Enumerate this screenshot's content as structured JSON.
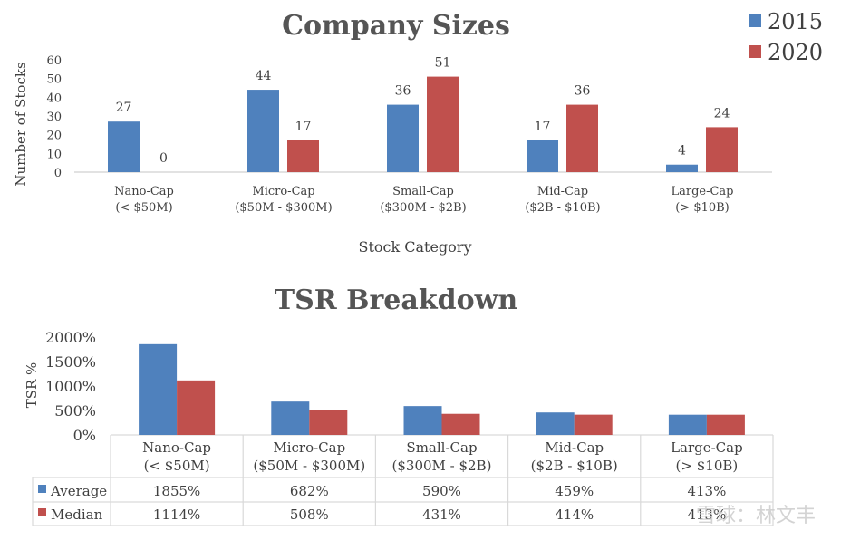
{
  "colors": {
    "series_2015": "#4f81bd",
    "series_2020": "#c0504d",
    "average": "#4f81bd",
    "median": "#c0504d",
    "axis": "#d9d9d9",
    "text": "#404040",
    "title": "#555555"
  },
  "watermark": "雪球：林文丰",
  "chart_data": [
    {
      "type": "bar",
      "title": "Company Sizes",
      "xlabel": "Stock Category",
      "ylabel": "Number of Stocks",
      "ylim": [
        0,
        60
      ],
      "yticks": [
        0,
        10,
        20,
        30,
        40,
        50,
        60
      ],
      "legend_position": "top-right",
      "categories": [
        [
          "Nano-Cap",
          "(< $50M)"
        ],
        [
          "Micro-Cap",
          "($50M - $300M)"
        ],
        [
          "Small-Cap",
          "($300M - $2B)"
        ],
        [
          "Mid-Cap",
          "($2B - $10B)"
        ],
        [
          "Large-Cap",
          "(> $10B)"
        ]
      ],
      "series": [
        {
          "name": "2015",
          "values": [
            27,
            44,
            36,
            17,
            4
          ]
        },
        {
          "name": "2020",
          "values": [
            0,
            17,
            51,
            36,
            24
          ]
        }
      ]
    },
    {
      "type": "bar",
      "title": "TSR Breakdown",
      "ylabel": "TSR %",
      "ylim": [
        0,
        2000
      ],
      "yticks": [
        "0%",
        "500%",
        "1000%",
        "1500%",
        "2000%"
      ],
      "ytick_values": [
        0,
        500,
        1000,
        1500,
        2000
      ],
      "categories": [
        [
          "Nano-Cap",
          "(< $50M)"
        ],
        [
          "Micro-Cap",
          "($50M - $300M)"
        ],
        [
          "Small-Cap",
          "($300M - $2B)"
        ],
        [
          "Mid-Cap",
          "($2B - $10B)"
        ],
        [
          "Large-Cap",
          "(> $10B)"
        ]
      ],
      "series": [
        {
          "name": "Average",
          "values": [
            1855,
            682,
            590,
            459,
            413
          ],
          "labels": [
            "1855%",
            "682%",
            "590%",
            "459%",
            "413%"
          ]
        },
        {
          "name": "Median",
          "values": [
            1114,
            508,
            431,
            414,
            413
          ],
          "labels": [
            "1114%",
            "508%",
            "431%",
            "414%",
            "413%"
          ]
        }
      ]
    }
  ]
}
